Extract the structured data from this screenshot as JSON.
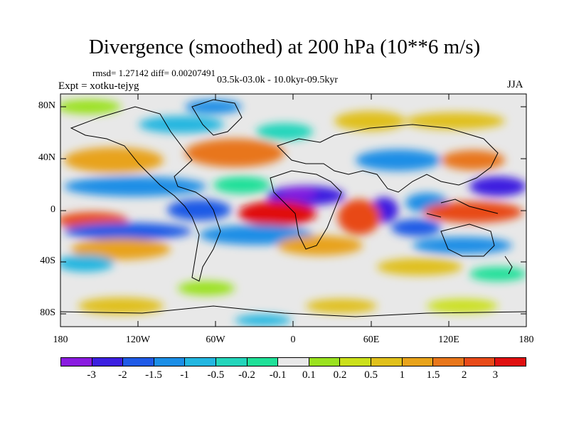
{
  "title": "Divergence (smoothed) at 200 hPa (10**6 m/s)",
  "stats": "rmsd= 1.27142 diff= 0.00207491",
  "period": "03.5k-03.0k - 10.0kyr-09.5kyr",
  "experiment": "Expt = xotku-tejyg",
  "season": "JJA",
  "y_axis_labels": [
    "80N",
    "40N",
    "0",
    "40S",
    "80S"
  ],
  "x_axis_labels": [
    "180",
    "120W",
    "60W",
    "0",
    "60E",
    "120E",
    "180"
  ],
  "colorbar": {
    "labels": [
      "-3",
      "-2",
      "-1.5",
      "-1",
      "-0.5",
      "-0.2",
      "-0.1",
      "0.1",
      "0.2",
      "0.5",
      "1",
      "1.5",
      "2",
      "3"
    ],
    "colors": [
      "#8a1be0",
      "#3c1fe0",
      "#1f5ae6",
      "#1b8ee6",
      "#22b6e0",
      "#23d5bb",
      "#1fe098",
      "#e8e8e8",
      "#9ae21f",
      "#cbe01a",
      "#e0c01a",
      "#e8a31a",
      "#e8761a",
      "#e84a18",
      "#e01010"
    ]
  },
  "map": {
    "projection": "cylindrical equidistant",
    "lon_range": [
      -180,
      180
    ],
    "lat_range": [
      -90,
      90
    ],
    "background_color": "#e8e8e8",
    "coastline_color": "#000000"
  }
}
